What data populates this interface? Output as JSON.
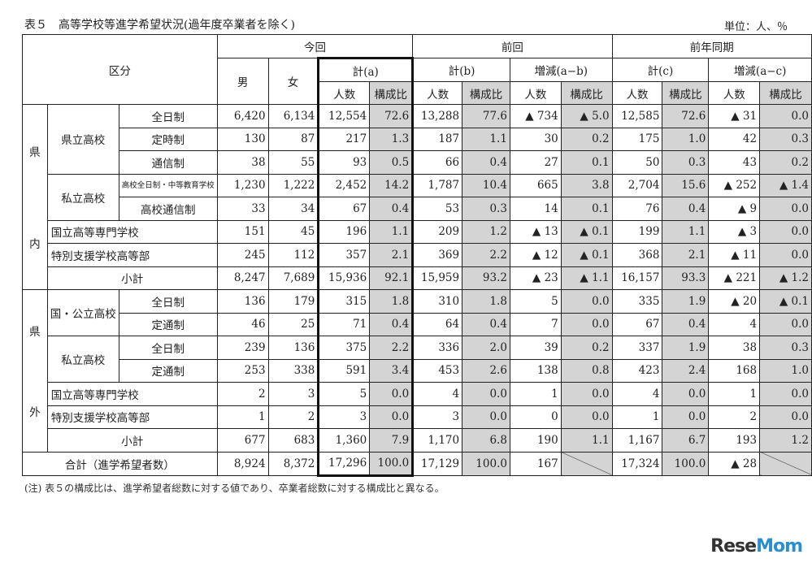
{
  "title": "表５　高等学校等進学希望状況(過年度卒業者を除く)",
  "unit": "単位：人、％",
  "note": "(注) 表５の構成比は、進学希望者総数に対する値であり、卒業者総数に対する構成比と異なる。",
  "logo": "ReseMom",
  "header": {
    "kubun": "区分",
    "konkai": "今回",
    "zenkai": "前回",
    "zennen": "前年同期",
    "male": "男",
    "female": "女",
    "kei_a": "計(a)",
    "kei_b": "計(b)",
    "zougen_ab": "増減(a−b)",
    "kei_c": "計(c)",
    "zougen_ac": "増減(a−c)",
    "ninzu": "人数",
    "kouseihi": "構成比"
  },
  "labels": {
    "kennai_1": "県",
    "kennai_2": "内",
    "kengai_1": "県",
    "kengai_2": "外",
    "kenritsu": "県立高校",
    "shiritsu": "私立高校",
    "kokukouritsu": "国・公立高校",
    "zennichi": "全日制",
    "teiji": "定時制",
    "tsushin": "通信制",
    "zennichi_chuto": "高校全日制・中等教育学校",
    "koukou_tsushin": "高校通信制",
    "teitsu": "定通制",
    "kosen": "国立高等専門学校",
    "tokubetsu": "特別支援学校高等部",
    "shoukei": "小計",
    "goukei": "合計（進学希望者数）"
  },
  "rows": [
    [
      "6,420",
      "6,134",
      "12,554",
      "72.6",
      "13,288",
      "77.6",
      "▲ 734",
      "▲ 5.0",
      "12,585",
      "72.6",
      "▲ 31",
      "0.0"
    ],
    [
      "130",
      "87",
      "217",
      "1.3",
      "187",
      "1.1",
      "30",
      "0.2",
      "175",
      "1.0",
      "42",
      "0.3"
    ],
    [
      "38",
      "55",
      "93",
      "0.5",
      "66",
      "0.4",
      "27",
      "0.1",
      "50",
      "0.3",
      "43",
      "0.2"
    ],
    [
      "1,230",
      "1,222",
      "2,452",
      "14.2",
      "1,787",
      "10.4",
      "665",
      "3.8",
      "2,704",
      "15.6",
      "▲ 252",
      "▲ 1.4"
    ],
    [
      "33",
      "34",
      "67",
      "0.4",
      "53",
      "0.3",
      "14",
      "0.1",
      "76",
      "0.4",
      "▲ 9",
      "0.0"
    ],
    [
      "151",
      "45",
      "196",
      "1.1",
      "209",
      "1.2",
      "▲ 13",
      "▲ 0.1",
      "199",
      "1.1",
      "▲ 3",
      "0.0"
    ],
    [
      "245",
      "112",
      "357",
      "2.1",
      "369",
      "2.2",
      "▲ 12",
      "▲ 0.1",
      "368",
      "2.1",
      "▲ 11",
      "0.0"
    ],
    [
      "8,247",
      "7,689",
      "15,936",
      "92.1",
      "15,959",
      "93.2",
      "▲ 23",
      "▲ 1.1",
      "16,157",
      "93.3",
      "▲ 221",
      "▲ 1.2"
    ],
    [
      "136",
      "179",
      "315",
      "1.8",
      "310",
      "1.8",
      "5",
      "0.0",
      "335",
      "1.9",
      "▲ 20",
      "▲ 0.1"
    ],
    [
      "46",
      "25",
      "71",
      "0.4",
      "64",
      "0.4",
      "7",
      "0.0",
      "67",
      "0.4",
      "4",
      "0.0"
    ],
    [
      "239",
      "136",
      "375",
      "2.2",
      "336",
      "2.0",
      "39",
      "0.2",
      "337",
      "1.9",
      "38",
      "0.3"
    ],
    [
      "253",
      "338",
      "591",
      "3.4",
      "453",
      "2.6",
      "138",
      "0.8",
      "423",
      "2.4",
      "168",
      "1.0"
    ],
    [
      "2",
      "3",
      "5",
      "0.0",
      "4",
      "0.0",
      "1",
      "0.0",
      "4",
      "0.0",
      "1",
      "0.0"
    ],
    [
      "1",
      "2",
      "3",
      "0.0",
      "3",
      "0.0",
      "0",
      "0.0",
      "1",
      "0.0",
      "2",
      "0.0"
    ],
    [
      "677",
      "683",
      "1,360",
      "7.9",
      "1,170",
      "6.8",
      "190",
      "1.1",
      "1,167",
      "6.7",
      "193",
      "1.2"
    ],
    [
      "8,924",
      "8,372",
      "17,296",
      "100.0",
      "17,129",
      "100.0",
      "167",
      null,
      "17,324",
      "100.0",
      "▲ 28",
      null
    ]
  ],
  "colors": {
    "shade": "#d4d4d4",
    "border": "#222222"
  }
}
